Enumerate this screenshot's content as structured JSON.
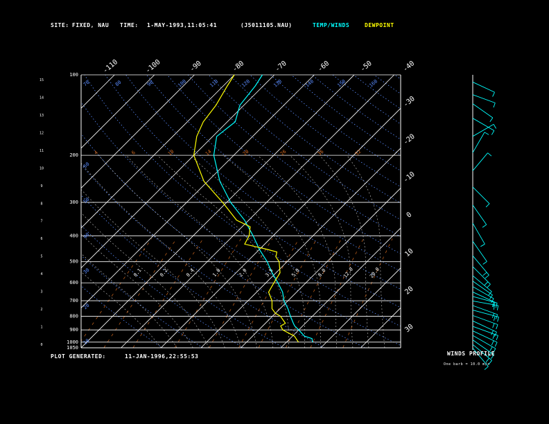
{
  "header": {
    "site_label": "SITE:",
    "site_value": "FIXED, NAU",
    "time_label": "TIME:",
    "time_value": "1-MAY-1993,11:05:41",
    "file_name": "(J5011105.NAU)",
    "temp_winds_label": "TEMP/WINDS",
    "dewpoint_label": "DEWPOINT"
  },
  "footer": {
    "plot_generated_label": "PLOT GENERATED:",
    "plot_generated_value": "11-JAN-1996,22:55:53",
    "winds_profile_label": "WINDS PROFILE",
    "barb_note": "One barb = 10.0 m/s"
  },
  "colors": {
    "temperature": "#00ffff",
    "dewpoint": "#ffff00",
    "isobars": "#ffffff",
    "isotherms": "#ffffff",
    "mixing_ratio": "#d2691e",
    "dry_adiabat": "#5a8cff",
    "moist_adiabat": "#c8c8c8",
    "labels": "#ffffff",
    "wind_barbs": "#00ffff"
  },
  "chart_data": {
    "type": "line",
    "diagram": "skew-t",
    "pressure_range_hPa": [
      1050,
      100
    ],
    "temperature_range_C": [
      -40,
      40
    ],
    "pressure_levels_labeled": [
      100,
      200,
      300,
      400,
      500,
      600,
      700,
      800,
      900,
      1000,
      1050
    ],
    "top_temperature_ticks": [
      "-110",
      "-100",
      "-90",
      "-80",
      "-70",
      "-60",
      "-50",
      "-40"
    ],
    "right_temperature_ticks": [
      "-30",
      "-20",
      "-10",
      "0",
      "10",
      "20",
      "30"
    ],
    "left_height_ticks_km": [
      "0",
      "1",
      "2",
      "3",
      "4",
      "5",
      "6",
      "7",
      "8",
      "9",
      "10",
      "11",
      "12",
      "13",
      "14",
      "15"
    ],
    "mixing_ratio_labels": [
      "4",
      "6",
      "10",
      "14",
      "20",
      "26",
      "36",
      "52",
      "0.1",
      "0.2",
      "0.4",
      "1.0",
      "2.0",
      "3.5",
      "5.0",
      "8.0",
      "12.0",
      "20.0"
    ],
    "theta_labels": [
      "10",
      "20",
      "30",
      "40",
      "50",
      "60",
      "70",
      "80",
      "90",
      "100",
      "110",
      "120",
      "130",
      "140",
      "150",
      "160"
    ],
    "series": [
      {
        "name": "TEMP/WINDS",
        "points": [
          [
            1000,
            16.5
          ],
          [
            970,
            15.5
          ],
          [
            950,
            13
          ],
          [
            900,
            10
          ],
          [
            870,
            8
          ],
          [
            850,
            7
          ],
          [
            800,
            4.5
          ],
          [
            750,
            2
          ],
          [
            700,
            -1
          ],
          [
            650,
            -3.5
          ],
          [
            600,
            -7
          ],
          [
            550,
            -11
          ],
          [
            500,
            -15
          ],
          [
            450,
            -20
          ],
          [
            400,
            -25
          ],
          [
            350,
            -31
          ],
          [
            300,
            -39
          ],
          [
            250,
            -47
          ],
          [
            200,
            -55
          ],
          [
            170,
            -59
          ],
          [
            150,
            -58
          ],
          [
            130,
            -61
          ],
          [
            110,
            -62
          ],
          [
            100,
            -63
          ]
        ]
      },
      {
        "name": "DEWPOINT",
        "points": [
          [
            1000,
            13
          ],
          [
            980,
            12
          ],
          [
            950,
            10.5
          ],
          [
            900,
            6
          ],
          [
            870,
            4.5
          ],
          [
            850,
            5
          ],
          [
            800,
            2
          ],
          [
            780,
            0
          ],
          [
            750,
            -2
          ],
          [
            700,
            -4
          ],
          [
            650,
            -7
          ],
          [
            600,
            -8
          ],
          [
            550,
            -9
          ],
          [
            500,
            -12
          ],
          [
            480,
            -14
          ],
          [
            460,
            -15
          ],
          [
            450,
            -18
          ],
          [
            430,
            -25
          ],
          [
            400,
            -26
          ],
          [
            370,
            -28
          ],
          [
            350,
            -33
          ],
          [
            300,
            -41
          ],
          [
            250,
            -51
          ],
          [
            200,
            -60
          ],
          [
            170,
            -64
          ],
          [
            150,
            -66
          ],
          [
            130,
            -67
          ],
          [
            110,
            -69
          ],
          [
            100,
            -70
          ]
        ]
      }
    ],
    "winds_profile": [
      {
        "h": 0.1,
        "dir": 220,
        "spd": 12
      },
      {
        "h": 0.3,
        "dir": 230,
        "spd": 15
      },
      {
        "h": 0.55,
        "dir": 235,
        "spd": 18
      },
      {
        "h": 0.8,
        "dir": 240,
        "spd": 20
      },
      {
        "h": 1.05,
        "dir": 245,
        "spd": 22
      },
      {
        "h": 1.3,
        "dir": 250,
        "spd": 22
      },
      {
        "h": 1.6,
        "dir": 245,
        "spd": 20
      },
      {
        "h": 1.9,
        "dir": 250,
        "spd": 21
      },
      {
        "h": 2.2,
        "dir": 255,
        "spd": 22
      },
      {
        "h": 2.45,
        "dir": 250,
        "spd": 20
      },
      {
        "h": 2.7,
        "dir": 260,
        "spd": 18
      },
      {
        "h": 2.95,
        "dir": 255,
        "spd": 16
      },
      {
        "h": 3.2,
        "dir": 245,
        "spd": 14
      },
      {
        "h": 3.5,
        "dir": 240,
        "spd": 12
      },
      {
        "h": 3.8,
        "dir": 235,
        "spd": 12
      },
      {
        "h": 4.1,
        "dir": 230,
        "spd": 14
      },
      {
        "h": 4.6,
        "dir": 225,
        "spd": 15
      },
      {
        "h": 5.2,
        "dir": 220,
        "spd": 16
      },
      {
        "h": 6.0,
        "dir": 215,
        "spd": 14
      },
      {
        "h": 7.0,
        "dir": 210,
        "spd": 12
      },
      {
        "h": 8.0,
        "dir": 215,
        "spd": 11
      },
      {
        "h": 9.0,
        "dir": 225,
        "spd": 10
      },
      {
        "h": 9.9,
        "dir": 320,
        "spd": 9
      },
      {
        "h": 10.9,
        "dir": 330,
        "spd": 10
      },
      {
        "h": 11.8,
        "dir": 300,
        "spd": 12
      },
      {
        "h": 12.8,
        "dir": 240,
        "spd": 14
      },
      {
        "h": 13.6,
        "dir": 235,
        "spd": 13
      },
      {
        "h": 14.1,
        "dir": 250,
        "spd": 11
      },
      {
        "h": 14.8,
        "dir": 245,
        "spd": 12
      }
    ]
  }
}
